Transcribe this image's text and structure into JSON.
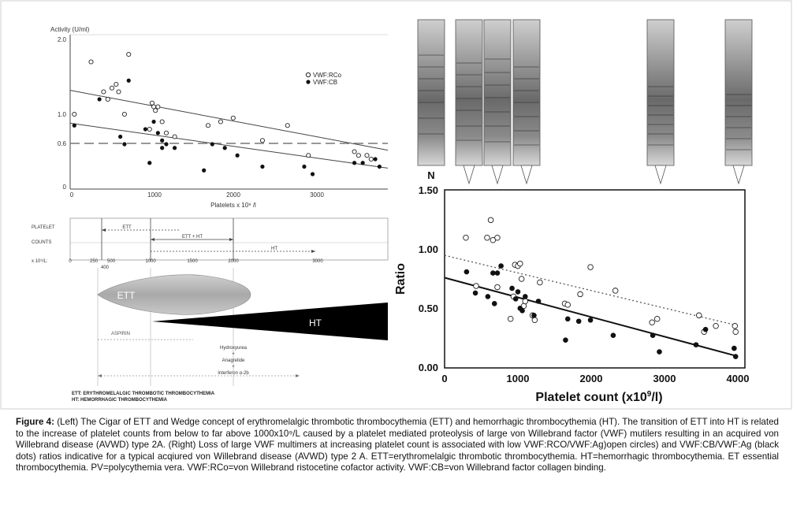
{
  "left_chart": {
    "y_axis_title": "Activity (U/ml)",
    "y_ticks": [
      "2.0",
      "1.0",
      "0.6",
      "0"
    ],
    "x_ticks": [
      "0",
      "1000",
      "2000",
      "3000"
    ],
    "x_label": "Platelets x 10⁹ /l",
    "legend": [
      "VWF:RCo",
      "VWF:CB"
    ]
  },
  "schematic": {
    "row1": "PLATELET",
    "row2": "COUNTS",
    "row3": "x 10⁹/L:",
    "ticks": [
      "0",
      "250",
      "500",
      "1000",
      "1500",
      "2000",
      "3000"
    ],
    "tick_400": "400",
    "ett_range": "ETT",
    "ett_ht_range": "ETT + HT",
    "ht_range": "HT",
    "cigar_label": "ETT",
    "wedge_label": "HT",
    "aspirin": "ASPIRIN",
    "treatments": [
      "Hydroxyurea",
      "+",
      "Anagrelide",
      "+",
      "Interferon α-2b"
    ],
    "footnote_ett": "ETT:   ERYTHROMELALGIC THROMBOTIC THROMBOCYTHEMIA",
    "footnote_ht": "HT:    HEMORRHAGIC THROMBOCYTHEMIA"
  },
  "multimer_lanes": [
    "N"
  ],
  "right_chart": {
    "y_label": "Ratio",
    "x_label_main": "Platelet count (x10",
    "x_label_sup": "9",
    "x_label_end": "/l)",
    "y_ticks": [
      "1.50",
      "1.00",
      "0.50",
      "0.00"
    ],
    "x_ticks": [
      "0",
      "1000",
      "2000",
      "3000",
      "4000"
    ]
  },
  "caption": {
    "lead": "Figure 4:",
    "text": " (Left) The Cigar of ETT and Wedge concept of erythromelalgic thrombotic thrombocythemia (ETT) and hemorrhagic thrombocythemia (HT). The transition of ETT into HT is related to the increase of platelet counts from below to far above 1000x10⁹/L caused by a platelet mediated proteolysis of large von Willebrand factor (VWF) mutilers resulting in an acquired von Willebrand disease (AVWD) type 2A. (Right) Loss of large VWF multimers at increasing platelet count is associated with low VWF:RCO/VWF:Ag)open circles) and VWF:CB/VWF:Ag (black dots) ratios indicative for a typical acqiured von Willebrand disease (AVWD) type 2 A. ETT=erythromelalgic thrombotic thrombocythemia. HT=hemorrhagic thrombocythemia. ET essential thrombocythemia. PV=polycythemia vera. VWF:RCo=von Willebrand ristocetine cofactor activity. VWF:CB=von Willebrand factor collagen binding."
  },
  "chart_data": [
    {
      "type": "scatter",
      "ylabel": "Activity (U/ml)",
      "xlabel": "Platelets x 10⁹ /l",
      "xlim": [
        0,
        3800
      ],
      "ylim": [
        0,
        2.0
      ],
      "reference_line_y": 0.6,
      "series": [
        {
          "name": "VWF:RCo",
          "marker": "open-circle",
          "x": [
            50,
            250,
            400,
            450,
            500,
            550,
            580,
            650,
            700,
            950,
            980,
            1000,
            1020,
            1050,
            1100,
            1150,
            1250,
            1650,
            1800,
            1950,
            2300,
            2600,
            2850,
            3400,
            3450,
            3550,
            3600
          ],
          "y": [
            1.0,
            1.7,
            1.3,
            1.2,
            1.35,
            1.4,
            1.3,
            1.0,
            1.8,
            0.8,
            1.15,
            1.1,
            1.05,
            1.1,
            0.9,
            0.75,
            0.7,
            0.85,
            0.9,
            0.95,
            0.65,
            0.85,
            0.45,
            0.5,
            0.45,
            0.45,
            0.4
          ]
        },
        {
          "name": "VWF:CB",
          "marker": "filled-dot",
          "x": [
            50,
            350,
            600,
            650,
            700,
            900,
            950,
            1000,
            1050,
            1100,
            1100,
            1150,
            1250,
            1600,
            1700,
            1850,
            2000,
            2300,
            2800,
            2900,
            3400,
            3500,
            3650,
            3700
          ],
          "y": [
            0.85,
            1.2,
            0.7,
            0.6,
            1.45,
            0.8,
            0.35,
            0.9,
            0.75,
            0.65,
            0.55,
            0.6,
            0.55,
            0.25,
            0.6,
            0.55,
            0.45,
            0.3,
            0.3,
            0.2,
            0.35,
            0.35,
            0.4,
            0.3
          ]
        }
      ],
      "trend_lines": [
        {
          "series": "VWF:RCo",
          "x": [
            0,
            3800
          ],
          "y": [
            1.32,
            0.52
          ]
        },
        {
          "series": "VWF:CB",
          "x": [
            0,
            3800
          ],
          "y": [
            0.88,
            0.28
          ]
        }
      ]
    },
    {
      "type": "scatter",
      "ylabel": "Ratio",
      "xlabel": "Platelet count (x10⁹/l)",
      "xlim": [
        0,
        4000
      ],
      "ylim": [
        0,
        1.5
      ],
      "series": [
        {
          "marker": "open-circle",
          "x": [
            290,
            430,
            580,
            630,
            660,
            720,
            720,
            900,
            940,
            960,
            1000,
            1030,
            1050,
            1080,
            1100,
            1200,
            1230,
            1300,
            1640,
            1680,
            1850,
            1990,
            2330,
            2830,
            2900,
            3470,
            3540,
            3700,
            3960,
            3970
          ],
          "y": [
            1.1,
            0.69,
            1.1,
            1.25,
            1.08,
            1.1,
            0.68,
            0.41,
            0.6,
            0.87,
            0.86,
            0.88,
            0.75,
            0.52,
            0.56,
            0.44,
            0.4,
            0.72,
            0.54,
            0.53,
            0.62,
            0.85,
            0.65,
            0.38,
            0.41,
            0.44,
            0.3,
            0.35,
            0.35,
            0.3
          ]
        },
        {
          "marker": "filled-dot",
          "x": [
            300,
            420,
            590,
            660,
            680,
            720,
            770,
            920,
            970,
            1000,
            1030,
            1060,
            1100,
            1220,
            1280,
            1650,
            1680,
            1830,
            1990,
            2300,
            2840,
            2930,
            3430,
            3560,
            3950,
            3970
          ],
          "y": [
            0.81,
            0.63,
            0.6,
            0.8,
            0.54,
            0.8,
            0.86,
            0.67,
            0.58,
            0.64,
            0.5,
            0.48,
            0.6,
            0.44,
            0.56,
            0.23,
            0.41,
            0.39,
            0.4,
            0.27,
            0.27,
            0.13,
            0.19,
            0.32,
            0.16,
            0.09
          ]
        }
      ],
      "trend_lines": [
        {
          "style": "dotted",
          "x": [
            0,
            3950
          ],
          "y": [
            0.95,
            0.36
          ]
        },
        {
          "style": "solid",
          "x": [
            0,
            3950
          ],
          "y": [
            0.76,
            0.1
          ]
        }
      ]
    }
  ]
}
